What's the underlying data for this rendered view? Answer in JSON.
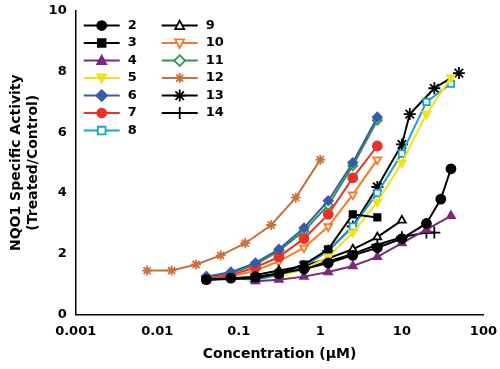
{
  "chart_data": {
    "type": "line",
    "x_label": "Concentration (µM)",
    "y_label": [
      "NQO1 Specific Activity",
      "(Treated/Control)"
    ],
    "log": "x",
    "grid": false,
    "legend": "top-left",
    "xlim": [
      0.001,
      100
    ],
    "xticks": [
      0.001,
      0.01,
      0.1,
      1,
      10,
      100
    ],
    "ylim": [
      0,
      10
    ],
    "yticks": [
      0,
      2,
      4,
      6,
      8,
      10
    ],
    "series": [
      {
        "name": "2",
        "color": "#000000",
        "marker": "circle",
        "x": [
          0.04,
          0.08,
          0.16,
          0.31,
          0.63,
          1.25,
          2.5,
          5,
          10,
          20,
          30,
          40
        ],
        "values": [
          1.15,
          1.2,
          1.25,
          1.35,
          1.5,
          1.7,
          1.95,
          2.2,
          2.5,
          3.0,
          3.8,
          4.8
        ]
      },
      {
        "name": "3",
        "color": "#000000",
        "marker": "square",
        "x": [
          0.04,
          0.16,
          0.31,
          0.63,
          1.25,
          2.5,
          5
        ],
        "values": [
          1.15,
          1.2,
          1.35,
          1.65,
          2.15,
          3.3,
          3.2
        ]
      },
      {
        "name": "4",
        "color": "#7b2a80",
        "marker": "triangle",
        "x": [
          0.16,
          0.31,
          0.63,
          1.25,
          2.5,
          5,
          10,
          20,
          40
        ],
        "values": [
          1.1,
          1.15,
          1.25,
          1.4,
          1.6,
          1.9,
          2.35,
          2.8,
          3.25
        ]
      },
      {
        "name": "5",
        "color": "#f2e21a",
        "marker": "triangle_down",
        "x": [
          0.31,
          0.63,
          1.25,
          2.5,
          5,
          10,
          20,
          40
        ],
        "values": [
          1.25,
          1.5,
          1.9,
          2.7,
          3.7,
          5.0,
          6.6,
          7.8
        ]
      },
      {
        "name": "6",
        "color": "#3a5ba8",
        "marker": "diamond",
        "x": [
          0.04,
          0.08,
          0.16,
          0.31,
          0.63,
          1.25,
          2.5,
          5
        ],
        "values": [
          1.25,
          1.4,
          1.7,
          2.15,
          2.85,
          3.75,
          5.0,
          6.5
        ]
      },
      {
        "name": "7",
        "color": "#e8322e",
        "marker": "circle",
        "x": [
          0.04,
          0.08,
          0.16,
          0.31,
          0.63,
          1.25,
          2.5,
          5
        ],
        "values": [
          1.2,
          1.3,
          1.55,
          1.9,
          2.5,
          3.3,
          4.5,
          5.55
        ]
      },
      {
        "name": "8",
        "color": "#1aa3c8",
        "marker": "square_open",
        "x": [
          0.04,
          0.08,
          0.16,
          0.31,
          0.63,
          1.25,
          2.5,
          5,
          10,
          20,
          40
        ],
        "values": [
          1.15,
          1.2,
          1.15,
          1.3,
          1.6,
          2.1,
          2.9,
          4.0,
          5.3,
          7.0,
          7.6
        ]
      },
      {
        "name": "9",
        "color": "#000000",
        "marker": "triangle_open",
        "x": [
          0.16,
          0.31,
          0.63,
          1.25,
          2.5,
          5,
          10
        ],
        "values": [
          1.3,
          1.45,
          1.6,
          1.85,
          2.15,
          2.55,
          3.1
        ]
      },
      {
        "name": "10",
        "color": "#f07c25",
        "marker": "triangle_down_open",
        "x": [
          0.04,
          0.08,
          0.16,
          0.31,
          0.63,
          1.25,
          2.5,
          5
        ],
        "values": [
          1.2,
          1.25,
          1.45,
          1.75,
          2.2,
          2.9,
          3.95,
          5.1
        ]
      },
      {
        "name": "11",
        "color": "#2a9a4a",
        "marker": "diamond_open",
        "x": [
          0.04,
          0.08,
          0.16,
          0.31,
          0.63,
          1.25,
          2.5,
          5
        ],
        "values": [
          1.25,
          1.35,
          1.65,
          2.1,
          2.75,
          3.6,
          4.9,
          6.4
        ]
      },
      {
        "name": "12",
        "color": "#c8713a",
        "marker": "asterisk",
        "x": [
          0.0075,
          0.015,
          0.03,
          0.06,
          0.12,
          0.25,
          0.5,
          1
        ],
        "values": [
          1.45,
          1.45,
          1.65,
          1.95,
          2.35,
          2.95,
          3.85,
          5.1
        ]
      },
      {
        "name": "13",
        "color": "#000000",
        "marker": "star",
        "x": [
          0.156,
          0.313,
          0.625,
          1.25,
          2.5,
          5,
          10,
          12.5,
          25,
          50
        ],
        "values": [
          1.2,
          1.35,
          1.6,
          2.1,
          2.9,
          4.2,
          5.6,
          6.6,
          7.45,
          7.95
        ]
      },
      {
        "name": "14",
        "color": "#000000",
        "marker": "plus",
        "x": [
          0.31,
          0.63,
          1.25,
          2.5,
          5,
          10,
          20,
          25
        ],
        "values": [
          1.3,
          1.5,
          1.75,
          2.0,
          2.3,
          2.55,
          2.7,
          2.7
        ]
      }
    ]
  }
}
